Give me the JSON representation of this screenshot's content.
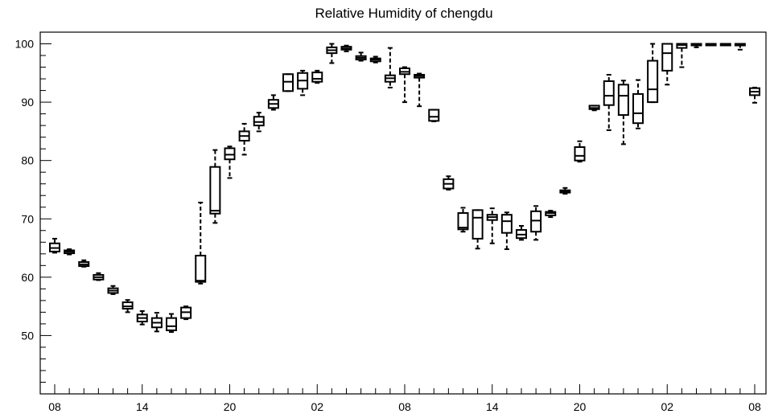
{
  "chart_data": {
    "type": "box",
    "title": "Relative Humidity of chengdu",
    "xlabel": "",
    "ylabel": "",
    "ylim": [
      40,
      102
    ],
    "y_ticks": [
      50,
      60,
      70,
      80,
      90,
      100
    ],
    "x_tick_labels": [
      "08",
      "14",
      "20",
      "02",
      "08",
      "14",
      "20",
      "02",
      "08"
    ],
    "x_tick_positions": [
      0,
      6,
      12,
      18,
      24,
      30,
      36,
      42,
      48
    ],
    "grid": false,
    "line_color": "#000000",
    "boxes": [
      {
        "x": 0,
        "whisker_low": 64.2,
        "q1": 64.4,
        "median": 65.0,
        "q3": 65.8,
        "whisker_high": 66.6
      },
      {
        "x": 1,
        "whisker_low": 63.9,
        "q1": 64.1,
        "median": 64.4,
        "q3": 64.6,
        "whisker_high": 64.8
      },
      {
        "x": 2,
        "whisker_low": 61.8,
        "q1": 61.9,
        "median": 62.2,
        "q3": 62.6,
        "whisker_high": 62.9
      },
      {
        "x": 3,
        "whisker_low": 59.5,
        "q1": 59.6,
        "median": 60.0,
        "q3": 60.4,
        "whisker_high": 60.7
      },
      {
        "x": 4,
        "whisker_low": 57.1,
        "q1": 57.3,
        "median": 57.7,
        "q3": 58.1,
        "whisker_high": 58.5
      },
      {
        "x": 5,
        "whisker_low": 54.0,
        "q1": 54.6,
        "median": 55.0,
        "q3": 55.7,
        "whisker_high": 56.1
      },
      {
        "x": 6,
        "whisker_low": 51.9,
        "q1": 52.4,
        "median": 53.0,
        "q3": 53.6,
        "whisker_high": 54.2
      },
      {
        "x": 7,
        "whisker_low": 50.7,
        "q1": 51.4,
        "median": 52.2,
        "q3": 53.0,
        "whisker_high": 53.9
      },
      {
        "x": 8,
        "whisker_low": 50.6,
        "q1": 50.9,
        "median": 51.6,
        "q3": 53.0,
        "whisker_high": 53.7
      },
      {
        "x": 9,
        "whisker_low": 52.8,
        "q1": 53.0,
        "median": 54.0,
        "q3": 54.8,
        "whisker_high": 55.0
      },
      {
        "x": 10,
        "whisker_low": 58.9,
        "q1": 59.2,
        "median": 59.4,
        "q3": 63.7,
        "whisker_high": 72.8
      },
      {
        "x": 11,
        "whisker_low": 69.3,
        "q1": 70.9,
        "median": 71.4,
        "q3": 78.9,
        "whisker_high": 81.8
      },
      {
        "x": 12,
        "whisker_low": 77.0,
        "q1": 80.2,
        "median": 81.0,
        "q3": 82.1,
        "whisker_high": 82.4
      },
      {
        "x": 13,
        "whisker_low": 81.0,
        "q1": 83.4,
        "median": 84.2,
        "q3": 85.0,
        "whisker_high": 86.3
      },
      {
        "x": 14,
        "whisker_low": 85.0,
        "q1": 86.0,
        "median": 86.6,
        "q3": 87.5,
        "whisker_high": 88.2
      },
      {
        "x": 15,
        "whisker_low": 88.7,
        "q1": 89.0,
        "median": 89.7,
        "q3": 90.4,
        "whisker_high": 91.2
      },
      {
        "x": 16,
        "whisker_low": 91.9,
        "q1": 91.9,
        "median": 93.5,
        "q3": 94.8,
        "whisker_high": 94.8
      },
      {
        "x": 17,
        "whisker_low": 91.2,
        "q1": 92.3,
        "median": 93.7,
        "q3": 95.0,
        "whisker_high": 95.4
      },
      {
        "x": 18,
        "whisker_low": 93.3,
        "q1": 93.5,
        "median": 94.0,
        "q3": 95.1,
        "whisker_high": 95.4
      },
      {
        "x": 19,
        "whisker_low": 96.7,
        "q1": 98.4,
        "median": 98.9,
        "q3": 99.4,
        "whisker_high": 100.0
      },
      {
        "x": 20,
        "whisker_low": 98.7,
        "q1": 99.0,
        "median": 99.2,
        "q3": 99.5,
        "whisker_high": 99.7
      },
      {
        "x": 21,
        "whisker_low": 97.1,
        "q1": 97.3,
        "median": 97.6,
        "q3": 97.9,
        "whisker_high": 98.5
      },
      {
        "x": 22,
        "whisker_low": 96.8,
        "q1": 97.0,
        "median": 97.3,
        "q3": 97.5,
        "whisker_high": 97.8
      },
      {
        "x": 23,
        "whisker_low": 92.5,
        "q1": 93.5,
        "median": 94.1,
        "q3": 94.6,
        "whisker_high": 99.3
      },
      {
        "x": 24,
        "whisker_low": 90.0,
        "q1": 94.8,
        "median": 95.2,
        "q3": 95.8,
        "whisker_high": 96.0
      },
      {
        "x": 25,
        "whisker_low": 89.3,
        "q1": 94.2,
        "median": 94.5,
        "q3": 94.7,
        "whisker_high": 94.9
      },
      {
        "x": 26,
        "whisker_low": 86.7,
        "q1": 86.8,
        "median": 87.5,
        "q3": 88.7,
        "whisker_high": 88.7
      },
      {
        "x": 27,
        "whisker_low": 75.0,
        "q1": 75.2,
        "median": 76.0,
        "q3": 76.8,
        "whisker_high": 77.3
      },
      {
        "x": 28,
        "whisker_low": 67.8,
        "q1": 68.2,
        "median": 68.5,
        "q3": 71.0,
        "whisker_high": 71.9
      },
      {
        "x": 29,
        "whisker_low": 64.9,
        "q1": 66.6,
        "median": 70.2,
        "q3": 71.5,
        "whisker_high": 71.5
      },
      {
        "x": 30,
        "whisker_low": 65.8,
        "q1": 69.8,
        "median": 70.3,
        "q3": 70.7,
        "whisker_high": 71.8
      },
      {
        "x": 31,
        "whisker_low": 64.8,
        "q1": 67.6,
        "median": 69.6,
        "q3": 70.7,
        "whisker_high": 71.1
      },
      {
        "x": 32,
        "whisker_low": 66.4,
        "q1": 66.7,
        "median": 67.3,
        "q3": 68.1,
        "whisker_high": 68.8
      },
      {
        "x": 33,
        "whisker_low": 66.4,
        "q1": 67.8,
        "median": 69.7,
        "q3": 71.3,
        "whisker_high": 72.2
      },
      {
        "x": 34,
        "whisker_low": 70.3,
        "q1": 70.6,
        "median": 71.0,
        "q3": 71.2,
        "whisker_high": 71.4
      },
      {
        "x": 35,
        "whisker_low": 74.3,
        "q1": 74.5,
        "median": 74.7,
        "q3": 74.9,
        "whisker_high": 75.3
      },
      {
        "x": 36,
        "whisker_low": 79.8,
        "q1": 80.0,
        "median": 80.8,
        "q3": 82.3,
        "whisker_high": 83.3
      },
      {
        "x": 37,
        "whisker_low": 88.6,
        "q1": 88.8,
        "median": 89.0,
        "q3": 89.4,
        "whisker_high": 89.4
      },
      {
        "x": 38,
        "whisker_low": 85.2,
        "q1": 89.5,
        "median": 91.1,
        "q3": 93.6,
        "whisker_high": 94.7
      },
      {
        "x": 39,
        "whisker_low": 82.8,
        "q1": 87.8,
        "median": 91.1,
        "q3": 93.0,
        "whisker_high": 93.7
      },
      {
        "x": 40,
        "whisker_low": 85.5,
        "q1": 86.4,
        "median": 88.1,
        "q3": 91.4,
        "whisker_high": 93.8
      },
      {
        "x": 41,
        "whisker_low": 90.0,
        "q1": 90.0,
        "median": 92.2,
        "q3": 97.1,
        "whisker_high": 100.0
      },
      {
        "x": 42,
        "whisker_low": 93.0,
        "q1": 95.4,
        "median": 98.4,
        "q3": 100.0,
        "whisker_high": 100.0
      },
      {
        "x": 43,
        "whisker_low": 96.0,
        "q1": 99.3,
        "median": 99.8,
        "q3": 100.0,
        "whisker_high": 100.0
      },
      {
        "x": 44,
        "whisker_low": 99.4,
        "q1": 99.8,
        "median": 100.0,
        "q3": 100.0,
        "whisker_high": 100.0
      },
      {
        "x": 45,
        "whisker_low": 100.0,
        "q1": 100.0,
        "median": 100.0,
        "q3": 100.0,
        "whisker_high": 100.0
      },
      {
        "x": 46,
        "whisker_low": 100.0,
        "q1": 100.0,
        "median": 100.0,
        "q3": 100.0,
        "whisker_high": 100.0
      },
      {
        "x": 47,
        "whisker_low": 99.0,
        "q1": 100.0,
        "median": 100.0,
        "q3": 100.0,
        "whisker_high": 100.0
      },
      {
        "x": 48,
        "whisker_low": 89.9,
        "q1": 91.2,
        "median": 91.8,
        "q3": 92.4,
        "whisker_high": 92.5
      }
    ]
  }
}
